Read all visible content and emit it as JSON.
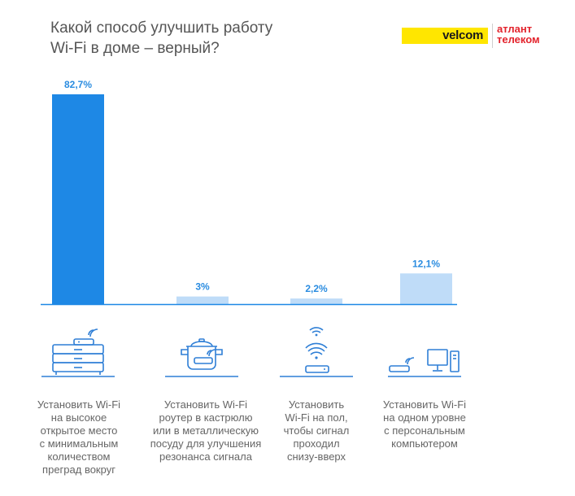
{
  "title_line1": "Какой способ улучшить работу",
  "title_line2": "Wi-Fi в доме – верный?",
  "logos": {
    "velcom": "velcom",
    "atlant_line1": "атлант",
    "atlant_line2": "телеком"
  },
  "colors": {
    "highlight": "#1e88e5",
    "bar": "#bfdcf8",
    "label": "#2a8ce0",
    "axis": "#1e88e5",
    "icon": "#2f7fd6"
  },
  "chart_data": {
    "type": "bar",
    "categories": [
      "Установить Wi-Fi на высокое открытое место с минимальным количеством преград вокруг",
      "Установить Wi-Fi роутер в кастрюлю или в металлическую посуду для улучшения резонанса сигнала",
      "Установить Wi-Fi на пол, чтобы сигнал проходил снизу-вверх",
      "Установить Wi-Fi на одном уровне с персональным компьютером"
    ],
    "values": [
      82.7,
      3,
      2.2,
      12.1
    ],
    "value_labels": [
      "82,7%",
      "3%",
      "2,2%",
      "12,1%"
    ],
    "highlight_index": 0,
    "title": "Какой способ улучшить работу Wi-Fi в доме – верный?",
    "ylim": [
      0,
      82.7
    ],
    "grid": false
  },
  "categories_lines": [
    [
      "Установить Wi-Fi",
      "на высокое",
      "открытое место",
      "с минимальным",
      "количеством",
      "преград вокруг"
    ],
    [
      "Установить Wi-Fi",
      "роутер в кастрюлю",
      "или в металлическую",
      "посуду для улучшения",
      "резонанса сигнала"
    ],
    [
      "Установить",
      "Wi-Fi на пол,",
      "чтобы сигнал",
      "проходил",
      "снизу-вверх"
    ],
    [
      "Установить Wi-Fi",
      "на одном уровне",
      "с персональным",
      "компьютером"
    ]
  ],
  "icons": [
    "router-on-cabinet-icon",
    "router-in-pot-icon",
    "router-on-floor-icon",
    "router-beside-computer-icon"
  ]
}
